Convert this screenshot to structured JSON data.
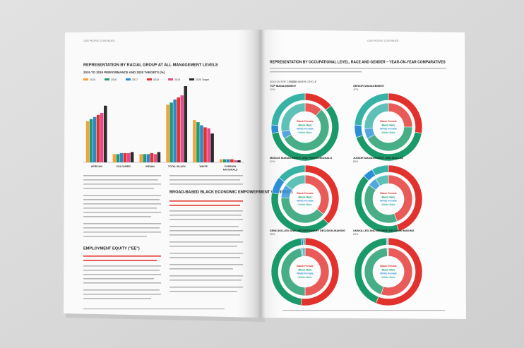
{
  "left_page": {
    "header": "OUR PEOPLE CONTINUED",
    "chart": {
      "title": "REPRESENTATION BY RACIAL GROUP AT ALL MANAGEMENT LEVELS",
      "subtitle": "2015 TO 2019 PERFORMANCE AND 2020 TARGETS (%)",
      "categories": [
        "AFRICAN",
        "COLOURED",
        "INDIAN",
        "TOTAL BLACK",
        "WHITE",
        "FOREIGN NATIONALS"
      ],
      "series": [
        {
          "name": "2015",
          "color": "#f2a33a",
          "values": [
            40,
            8,
            8,
            56,
            41,
            3
          ]
        },
        {
          "name": "2016",
          "color": "#1f9a74",
          "values": [
            42,
            8,
            8,
            58,
            39,
            3
          ]
        },
        {
          "name": "2017",
          "color": "#2f86c9",
          "values": [
            44,
            9,
            8,
            61,
            36,
            3
          ]
        },
        {
          "name": "2018",
          "color": "#e2322e",
          "values": [
            46,
            9,
            9,
            63,
            34,
            3
          ]
        },
        {
          "name": "2019",
          "color": "#e84a8c",
          "values": [
            48,
            9,
            8,
            65,
            33,
            2
          ]
        },
        {
          "name": "2020 Target",
          "color": "#2b2b2b",
          "values": [
            55,
            10,
            10,
            74,
            28,
            2
          ]
        }
      ]
    },
    "headings": [
      "EMPLOYMENT EQUITY (\"EE\")",
      "BROAD-BASED BLACK ECONOMIC EMPOWERMENT (\"B-BBEE\")"
    ]
  },
  "right_page": {
    "header": "OUR PEOPLE CONTINUED",
    "title": "REPRESENTATION BY OCCUPATIONAL LEVEL, RACE AND GENDER – YEAR-ON-YEAR COMPARATIVES",
    "rings": [
      "2019 OUTER CIRCLE",
      "2018 INNER CIRCLE"
    ],
    "legend": [
      {
        "name": "Black Female",
        "color": "#e2322e"
      },
      {
        "name": "Black Male",
        "color": "#1a9a6a"
      },
      {
        "name": "White Female",
        "color": "#2b8fd6"
      },
      {
        "name": "White Male",
        "color": "#36b2a6"
      }
    ],
    "donuts": [
      {
        "title": "TOP MANAGEMENT",
        "subtitle": "42%",
        "outer": [
          14,
          58,
          4,
          24
        ],
        "inner": [
          12,
          55,
          5,
          28
        ]
      },
      {
        "title": "SENIOR MANAGEMENT",
        "subtitle": "47%",
        "outer": [
          28,
          42,
          6,
          24
        ],
        "inner": [
          25,
          42,
          7,
          26
        ]
      },
      {
        "title": "MIDDLE MANAGEMENT AND PROFESSIONALS",
        "subtitle": "62%",
        "outer": [
          38,
          40,
          8,
          14
        ],
        "inner": [
          36,
          40,
          9,
          15
        ]
      },
      {
        "title": "JUNIOR MANAGEMENT AND SKILLED",
        "subtitle": "85%",
        "outer": [
          45,
          42,
          5,
          8
        ],
        "inner": [
          44,
          41,
          6,
          9
        ]
      },
      {
        "title": "SEMI-SKILLED AND DISCRETIONARY DECISION-MAKING",
        "subtitle": "98%",
        "outer": [
          52,
          46,
          1,
          1
        ],
        "inner": [
          50,
          47,
          1,
          2
        ]
      },
      {
        "title": "UNSKILLED AND DEFINED DECISION MAKING",
        "subtitle": "99%",
        "outer": [
          56,
          43,
          0.5,
          0.5
        ],
        "inner": [
          55,
          44,
          0.5,
          0.5
        ]
      }
    ]
  }
}
